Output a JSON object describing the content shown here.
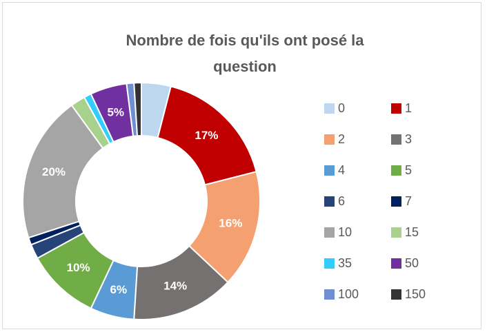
{
  "chart_data": {
    "type": "donut",
    "title": "Nombre de fois qu'ils ont posé la question",
    "categories": [
      "0",
      "1",
      "2",
      "3",
      "4",
      "5",
      "6",
      "7",
      "10",
      "15",
      "35",
      "50",
      "100",
      "150"
    ],
    "values": [
      4,
      17,
      16,
      14,
      6,
      10,
      2,
      1,
      20,
      2,
      1,
      5,
      1,
      1
    ],
    "value_labels": [
      null,
      "17%",
      "16%",
      "14%",
      "6%",
      "10%",
      null,
      null,
      "20%",
      null,
      null,
      "5%",
      null,
      null
    ],
    "colors": [
      "#bdd7ee",
      "#c00000",
      "#f4a070",
      "#757171",
      "#5b9bd5",
      "#70ad47",
      "#264478",
      "#002060",
      "#a5a5a5",
      "#a9d18e",
      "#33ccff",
      "#7030a0",
      "#6f8fd0",
      "#333333"
    ],
    "legend": "right"
  }
}
